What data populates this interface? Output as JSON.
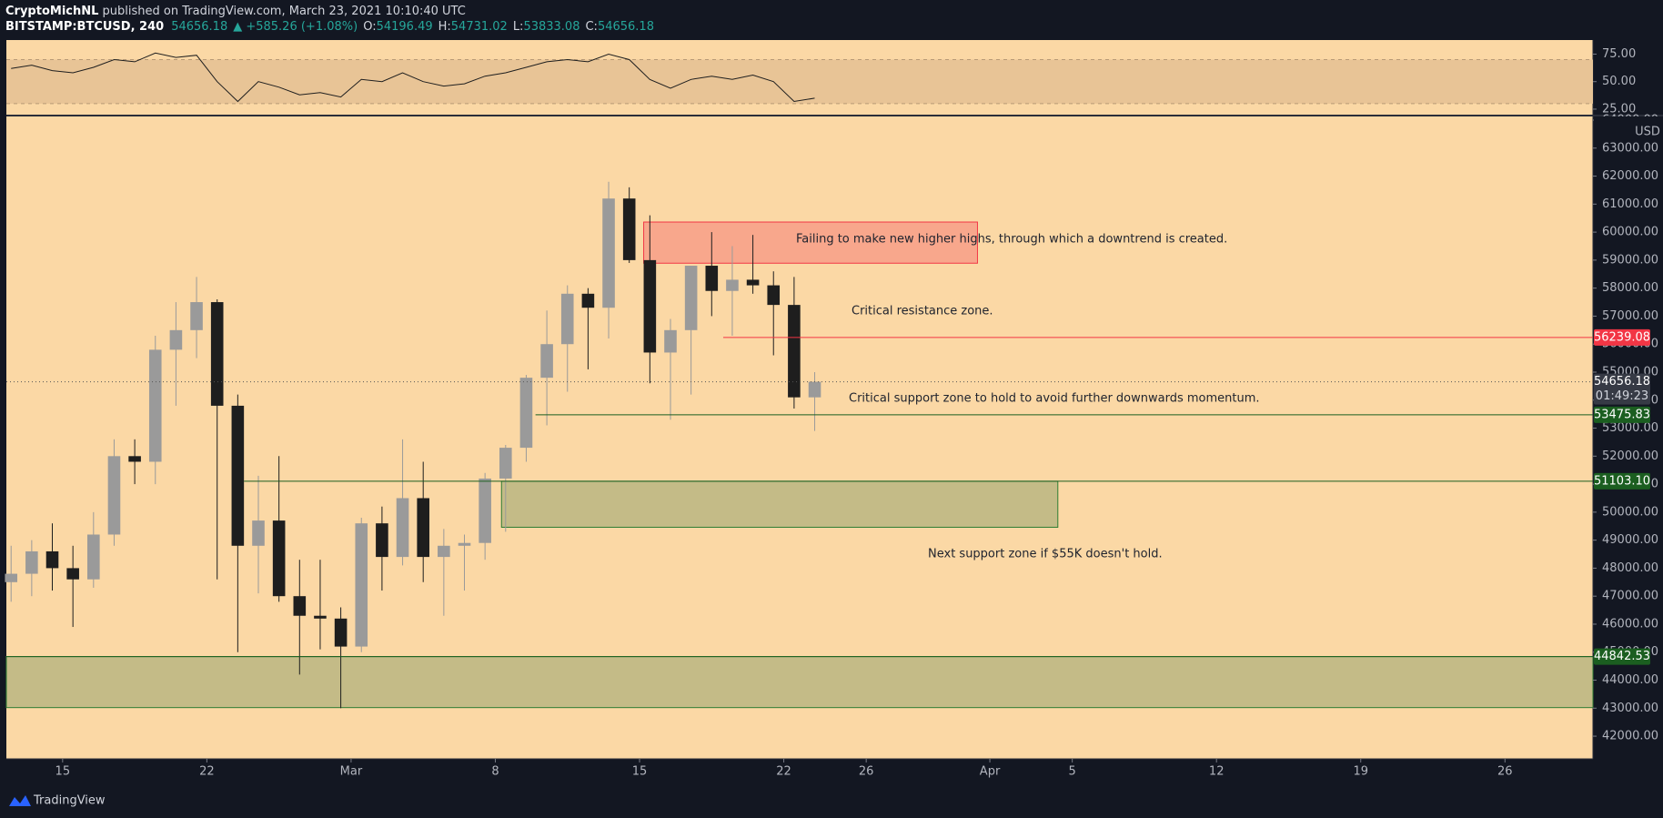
{
  "header": {
    "author": "CryptoMichNL",
    "published": " published on TradingView.com, March 23, 2021 10:10:40 UTC",
    "symbol": "BITSTAMP:BTCUSD, 240",
    "last": "54656.18",
    "change": "▲ +585.26 (+1.08%)",
    "ohlc": [
      {
        "label": "O:",
        "value": "54196.49"
      },
      {
        "label": "H:",
        "value": "54731.02"
      },
      {
        "label": "L:",
        "value": "53833.08"
      },
      {
        "label": "C:",
        "value": "54656.18"
      }
    ]
  },
  "footer": {
    "brand": "TradingView"
  },
  "chart_data": [
    {
      "type": "candlestick",
      "up_color": "#9a9a9a",
      "down_color": "#1e1e1e",
      "background": "#fbd8a5",
      "x": [
        11.5,
        12.5,
        13.5,
        14.5,
        15.5,
        16.5,
        17.5,
        18.5,
        19.5,
        20.5,
        21.5,
        22.5,
        23.5,
        24.5,
        25.5,
        26.5,
        27.5,
        28.5,
        29.5,
        30.5,
        31.5,
        32.5,
        33.5,
        34.5,
        35.5,
        36.5,
        37.5,
        38.5,
        39.5,
        40.5,
        41.5,
        42.5,
        43.5,
        44.5,
        45.5,
        46.5,
        47.5,
        48.5,
        49.5,
        50.5
      ],
      "open": [
        47500,
        47800,
        48600,
        48000,
        47600,
        49200,
        52000,
        51800,
        55800,
        56500,
        57500,
        53800,
        48800,
        49700,
        47000,
        46300,
        46200,
        45200,
        49600,
        48400,
        50500,
        48400,
        48800,
        48900,
        51200,
        52300,
        54800,
        56000,
        57800,
        57300,
        61200,
        59000,
        55700,
        56500,
        58800,
        57900,
        58300,
        58100,
        57400,
        54100
      ],
      "high": [
        48800,
        49000,
        49600,
        48800,
        50000,
        52600,
        52600,
        56300,
        57500,
        58400,
        57600,
        54200,
        51300,
        52000,
        48300,
        48300,
        46600,
        49800,
        50200,
        52600,
        51800,
        49400,
        49200,
        51400,
        52400,
        54900,
        57200,
        58100,
        58000,
        61800,
        61600,
        60600,
        56900,
        58800,
        60000,
        59500,
        59900,
        58600,
        58400,
        55000
      ],
      "low": [
        46800,
        47000,
        47200,
        45900,
        47300,
        48800,
        51000,
        51000,
        53800,
        55500,
        47600,
        45000,
        47100,
        46800,
        44200,
        45100,
        43000,
        45000,
        47200,
        48100,
        47500,
        46300,
        47200,
        48300,
        49300,
        51800,
        53100,
        54300,
        55100,
        56200,
        58900,
        54600,
        53300,
        54200,
        57000,
        56300,
        57800,
        55600,
        53700,
        52900
      ],
      "close": [
        47800,
        48600,
        48000,
        47600,
        49200,
        52000,
        51800,
        55800,
        56500,
        57500,
        53800,
        48800,
        49700,
        47000,
        46300,
        46200,
        45200,
        49600,
        48400,
        50500,
        48400,
        48800,
        48900,
        51200,
        52300,
        54800,
        56000,
        57800,
        57300,
        61200,
        59000,
        55700,
        56500,
        58800,
        57900,
        58300,
        58100,
        57400,
        54100,
        54656.18
      ],
      "xlim": [
        11.27,
        88.27
      ],
      "ylim": [
        41190,
        64130
      ],
      "xticks": [
        {
          "value": 14,
          "label": "15"
        },
        {
          "value": 21,
          "label": "22"
        },
        {
          "value": 28,
          "label": "Mar"
        },
        {
          "value": 35,
          "label": "8"
        },
        {
          "value": 42,
          "label": "15"
        },
        {
          "value": 49,
          "label": "22"
        },
        {
          "value": 53,
          "label": "26"
        },
        {
          "value": 59,
          "label": "Apr"
        },
        {
          "value": 63,
          "label": "5"
        },
        {
          "value": 70,
          "label": "12"
        },
        {
          "value": 77,
          "label": "19"
        },
        {
          "value": 84,
          "label": "26"
        }
      ],
      "yticks": [
        {
          "value": 42000,
          "label": "42000.00"
        },
        {
          "value": 43000,
          "label": "43000.00"
        },
        {
          "value": 44000,
          "label": "44000.00"
        },
        {
          "value": 45000,
          "label": "45000.00"
        },
        {
          "value": 46000,
          "label": "46000.00"
        },
        {
          "value": 47000,
          "label": "47000.00"
        },
        {
          "value": 48000,
          "label": "48000.00"
        },
        {
          "value": 49000,
          "label": "49000.00"
        },
        {
          "value": 50000,
          "label": "50000.00"
        },
        {
          "value": 51000,
          "label": "51000.00"
        },
        {
          "value": 52000,
          "label": "52000.00"
        },
        {
          "value": 53000,
          "label": "53000.00"
        },
        {
          "value": 54000,
          "label": "54000.00"
        },
        {
          "value": 55000,
          "label": "55000.00"
        },
        {
          "value": 56000,
          "label": "56000.00"
        },
        {
          "value": 57000,
          "label": "57000.00"
        },
        {
          "value": 58000,
          "label": "58000.00"
        },
        {
          "value": 59000,
          "label": "59000.00"
        },
        {
          "value": 60000,
          "label": "60000.00"
        },
        {
          "value": 61000,
          "label": "61000.00"
        },
        {
          "value": 62000,
          "label": "62000.00"
        },
        {
          "value": 63000,
          "label": "63000.00"
        },
        {
          "value": 64000,
          "label": "64000.00"
        }
      ],
      "currency": "USD",
      "zones": [
        {
          "x": [
            42.2,
            58.4
          ],
          "y": [
            58890,
            60360
          ],
          "fill": "#f8a78c",
          "stroke": "#f23645"
        },
        {
          "x": [
            35.3,
            62.3
          ],
          "y": [
            49460,
            51103.1
          ],
          "fill": "#c4bb87",
          "stroke": "#2e7d32"
        },
        {
          "x": [
            11.27,
            88.27
          ],
          "y": [
            43020,
            44842.53
          ],
          "fill": "#c4bb87",
          "stroke": "#2e7d32"
        }
      ],
      "levels": [
        {
          "value": 56239.08,
          "label": "56239.08",
          "color": "#f23645",
          "from": 46.06
        },
        {
          "value": 53475.83,
          "label": "53475.83",
          "color": "#1b5e20",
          "from": 36.95
        },
        {
          "value": 51103.1,
          "label": "51103.10",
          "color": "#1b5e20",
          "from": 22.8
        },
        {
          "value": 44842.53,
          "label": "44842.53",
          "color": "#1b5e20",
          "from": 11.27
        }
      ],
      "last_price": {
        "value": 54656.18,
        "label": "54656.18",
        "countdown": "01:49:23",
        "color": "#363a45"
      },
      "annotations": [
        "Failing to make new higher highs, through which a downtrend is created.",
        "Critical resistance zone.",
        "Critical support zone to hold to avoid further downwards momentum.",
        "Next support zone if $55K doesn't hold."
      ]
    },
    {
      "type": "line",
      "color": "#1e1e1e",
      "band": [
        30,
        70
      ],
      "x": [
        11.5,
        12.5,
        13.5,
        14.5,
        15.5,
        16.5,
        17.5,
        18.5,
        19.5,
        20.5,
        21.5,
        22.5,
        23.5,
        24.5,
        25.5,
        26.5,
        27.5,
        28.5,
        29.5,
        30.5,
        31.5,
        32.5,
        33.5,
        34.5,
        35.5,
        36.5,
        37.5,
        38.5,
        39.5,
        40.5,
        41.5,
        42.5,
        43.5,
        44.5,
        45.5,
        46.5,
        47.5,
        48.5,
        49.5,
        50.5
      ],
      "values": [
        62,
        65,
        60,
        58,
        63,
        70,
        68,
        76,
        72,
        74,
        50,
        32,
        50,
        45,
        38,
        40,
        36,
        52,
        50,
        58,
        50,
        46,
        48,
        55,
        58,
        63,
        68,
        70,
        68,
        75,
        70,
        52,
        44,
        52,
        55,
        52,
        56,
        50,
        32,
        35
      ],
      "ylim": [
        20,
        87.8
      ],
      "yticks": [
        {
          "value": 25,
          "label": "25.00"
        },
        {
          "value": 50,
          "label": "50.00"
        },
        {
          "value": 75,
          "label": "75.00"
        }
      ]
    }
  ]
}
